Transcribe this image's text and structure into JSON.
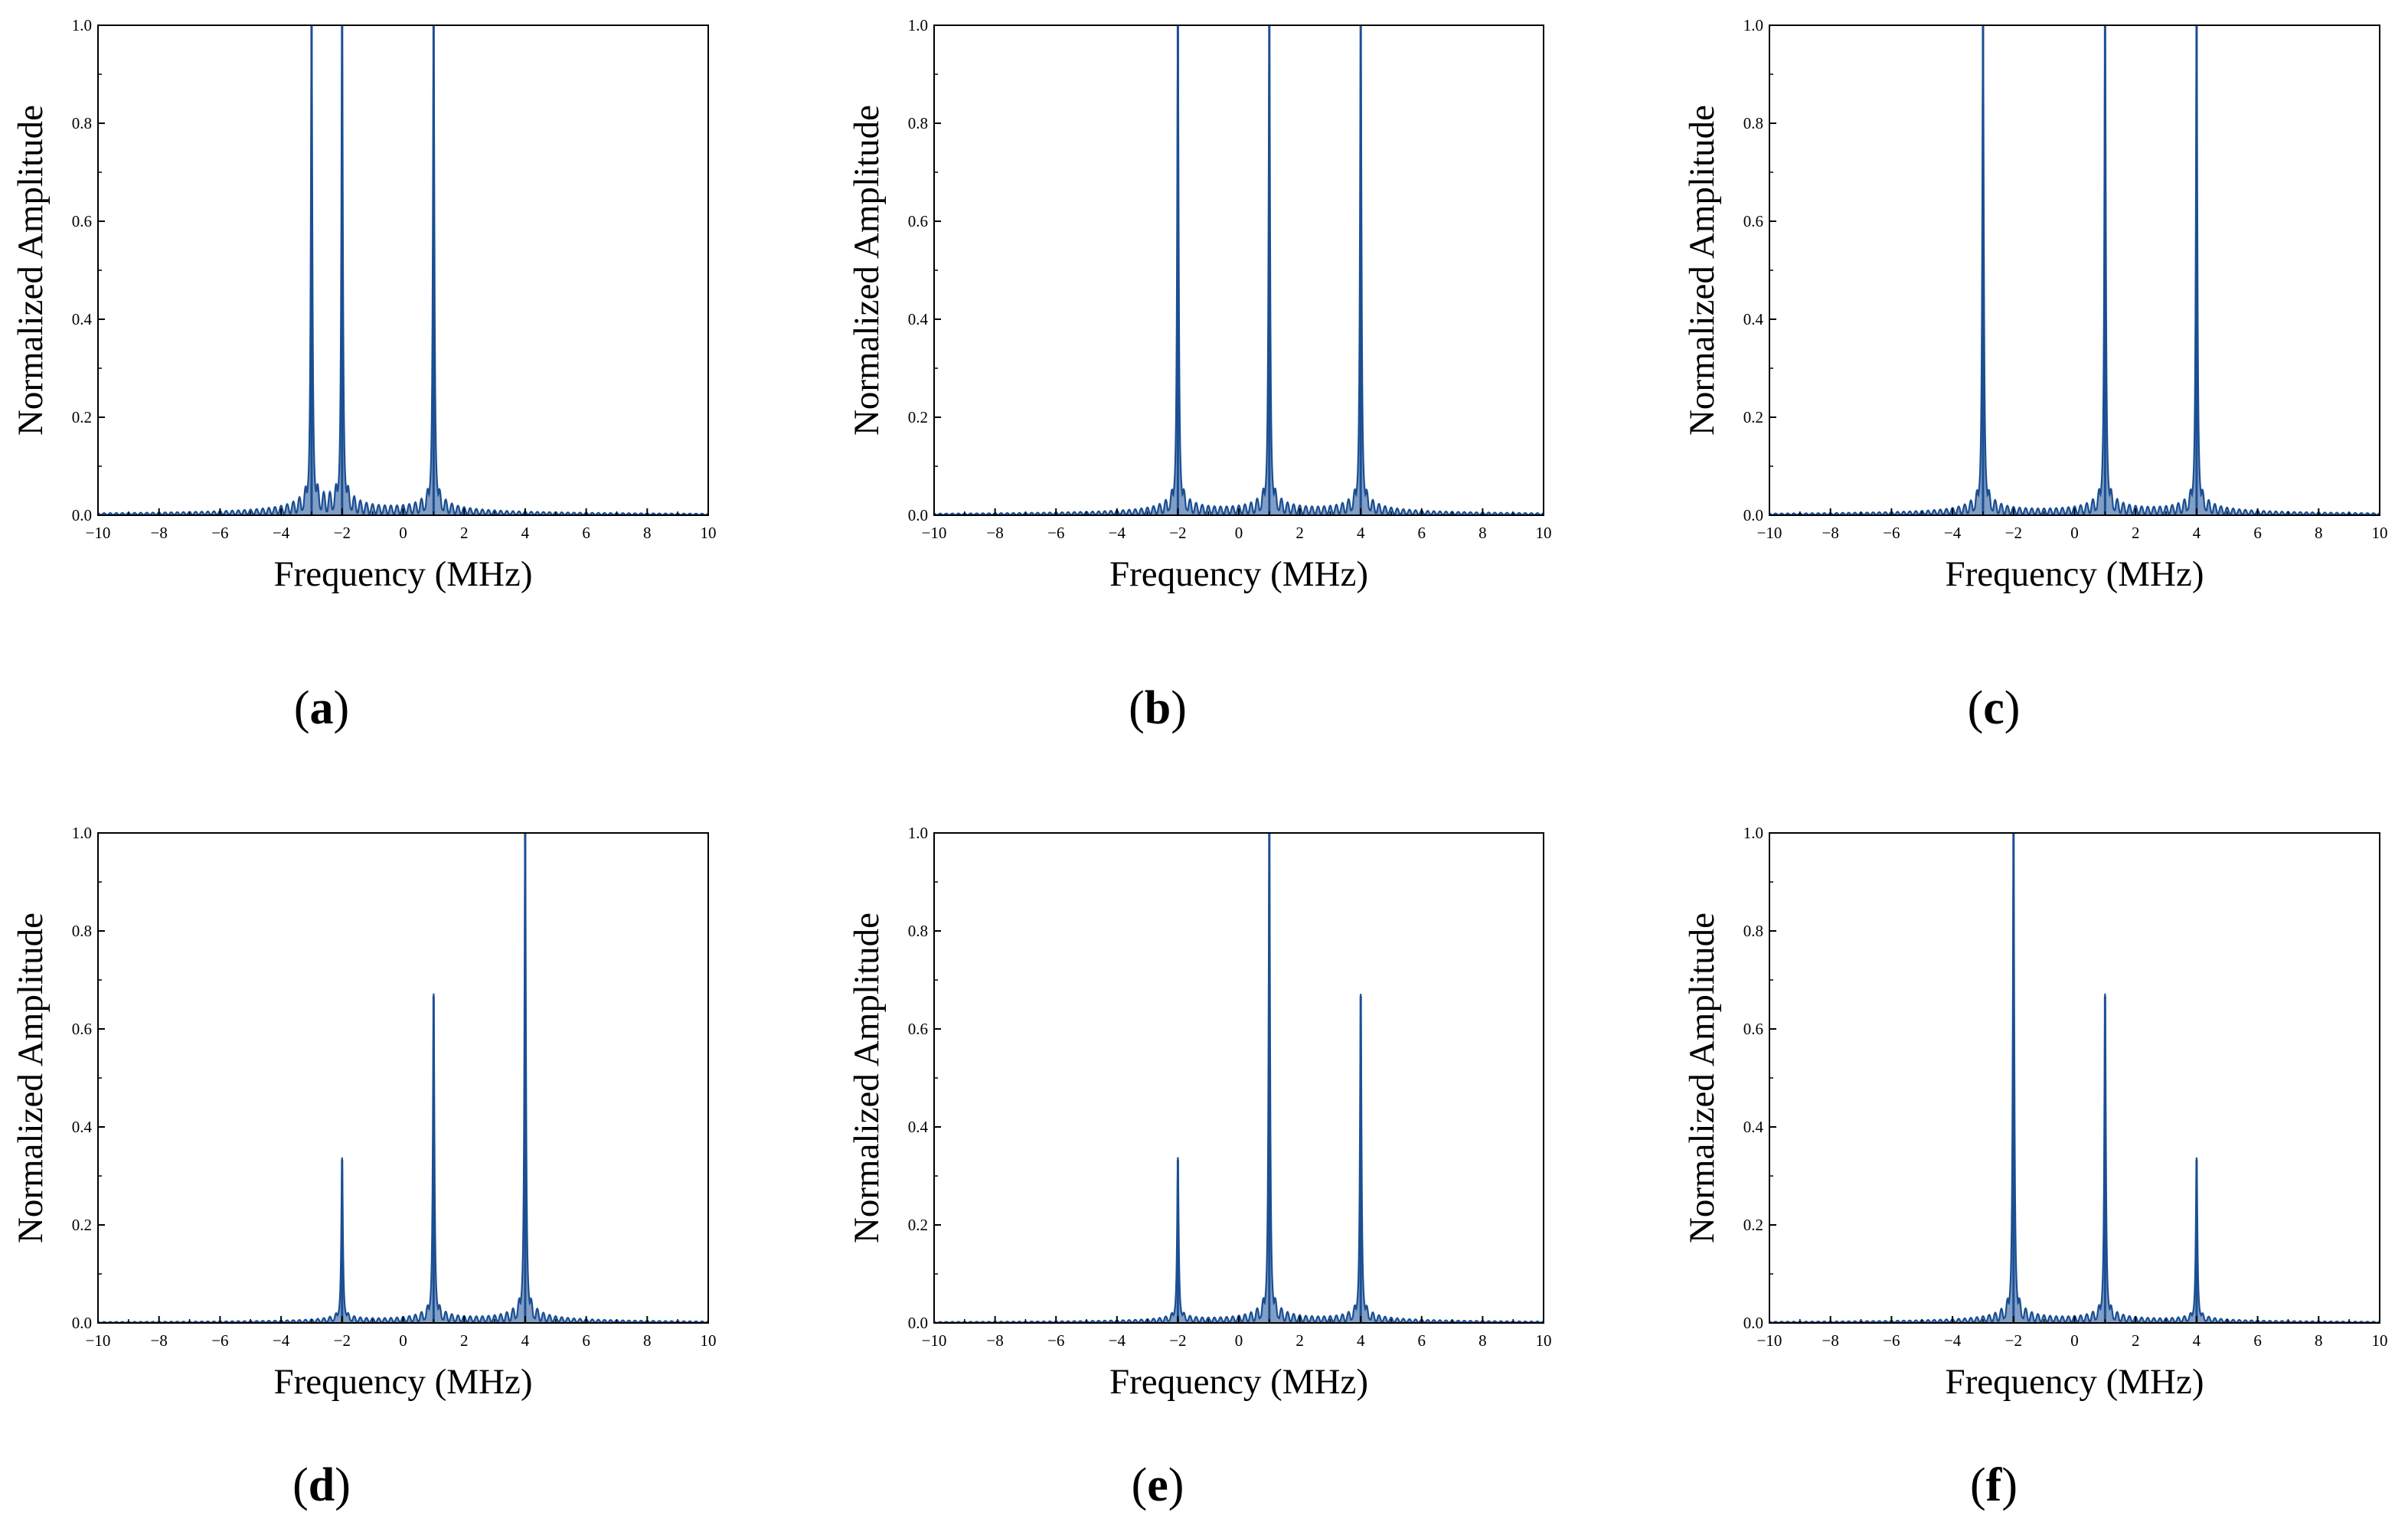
{
  "colors": {
    "series": "#1b4f93",
    "axis": "#000000",
    "background": "#ffffff"
  },
  "chart_data": [
    {
      "type": "line",
      "panel_label": "a",
      "xlabel": "Frequency (MHz)",
      "ylabel": "Normalized Amplitude",
      "xlim": [
        -10,
        10
      ],
      "ylim": [
        0,
        1.0
      ],
      "xticks": [
        "−10",
        "−8",
        "−6",
        "−4",
        "−2",
        "0",
        "2",
        "4",
        "6",
        "8",
        "10"
      ],
      "yticks": [
        "0.0",
        "0.2",
        "0.4",
        "0.6",
        "0.8",
        "1.0"
      ],
      "grid": false,
      "peaks": [
        {
          "x": -3,
          "y": 1.0
        },
        {
          "x": -2,
          "y": 1.0
        },
        {
          "x": 1,
          "y": 1.0
        }
      ]
    },
    {
      "type": "line",
      "panel_label": "b",
      "xlabel": "Frequency (MHz)",
      "ylabel": "Normalized Amplitude",
      "xlim": [
        -10,
        10
      ],
      "ylim": [
        0,
        1.0
      ],
      "xticks": [
        "−10",
        "−8",
        "−6",
        "−4",
        "−2",
        "0",
        "2",
        "4",
        "6",
        "8",
        "10"
      ],
      "yticks": [
        "0.0",
        "0.2",
        "0.4",
        "0.6",
        "0.8",
        "1.0"
      ],
      "grid": false,
      "peaks": [
        {
          "x": -2,
          "y": 1.0
        },
        {
          "x": 1,
          "y": 1.0
        },
        {
          "x": 4,
          "y": 1.0
        }
      ]
    },
    {
      "type": "line",
      "panel_label": "c",
      "xlabel": "Frequency (MHz)",
      "ylabel": "Normalized Amplitude",
      "xlim": [
        -10,
        10
      ],
      "ylim": [
        0,
        1.0
      ],
      "xticks": [
        "−10",
        "−8",
        "−6",
        "−4",
        "−2",
        "0",
        "2",
        "4",
        "6",
        "8",
        "10"
      ],
      "yticks": [
        "0.0",
        "0.2",
        "0.4",
        "0.6",
        "0.8",
        "1.0"
      ],
      "grid": false,
      "peaks": [
        {
          "x": -3,
          "y": 1.0
        },
        {
          "x": 1,
          "y": 1.0
        },
        {
          "x": 4,
          "y": 1.0
        }
      ]
    },
    {
      "type": "line",
      "panel_label": "d",
      "xlabel": "Frequency (MHz)",
      "ylabel": "Normalized Amplitude",
      "xlim": [
        -10,
        10
      ],
      "ylim": [
        0,
        1.0
      ],
      "xticks": [
        "−10",
        "−8",
        "−6",
        "−4",
        "−2",
        "0",
        "2",
        "4",
        "6",
        "8",
        "10"
      ],
      "yticks": [
        "0.0",
        "0.2",
        "0.4",
        "0.6",
        "0.8",
        "1.0"
      ],
      "grid": false,
      "peaks": [
        {
          "x": -2,
          "y": 0.333
        },
        {
          "x": 1,
          "y": 0.667
        },
        {
          "x": 4,
          "y": 1.0
        }
      ]
    },
    {
      "type": "line",
      "panel_label": "e",
      "xlabel": "Frequency (MHz)",
      "ylabel": "Normalized Amplitude",
      "xlim": [
        -10,
        10
      ],
      "ylim": [
        0,
        1.0
      ],
      "xticks": [
        "−10",
        "−8",
        "−6",
        "−4",
        "−2",
        "0",
        "2",
        "4",
        "6",
        "8",
        "10"
      ],
      "yticks": [
        "0.0",
        "0.2",
        "0.4",
        "0.6",
        "0.8",
        "1.0"
      ],
      "grid": false,
      "peaks": [
        {
          "x": -2,
          "y": 0.333
        },
        {
          "x": 1,
          "y": 1.0
        },
        {
          "x": 4,
          "y": 0.667
        }
      ]
    },
    {
      "type": "line",
      "panel_label": "f",
      "xlabel": "Frequency (MHz)",
      "ylabel": "Normalized Amplitude",
      "xlim": [
        -10,
        10
      ],
      "ylim": [
        0,
        1.0
      ],
      "xticks": [
        "−10",
        "−8",
        "−6",
        "−4",
        "−2",
        "0",
        "2",
        "4",
        "6",
        "8",
        "10"
      ],
      "yticks": [
        "0.0",
        "0.2",
        "0.4",
        "0.6",
        "0.8",
        "1.0"
      ],
      "grid": false,
      "peaks": [
        {
          "x": -2,
          "y": 1.0
        },
        {
          "x": 1,
          "y": 0.667
        },
        {
          "x": 4,
          "y": 0.333
        }
      ]
    }
  ]
}
